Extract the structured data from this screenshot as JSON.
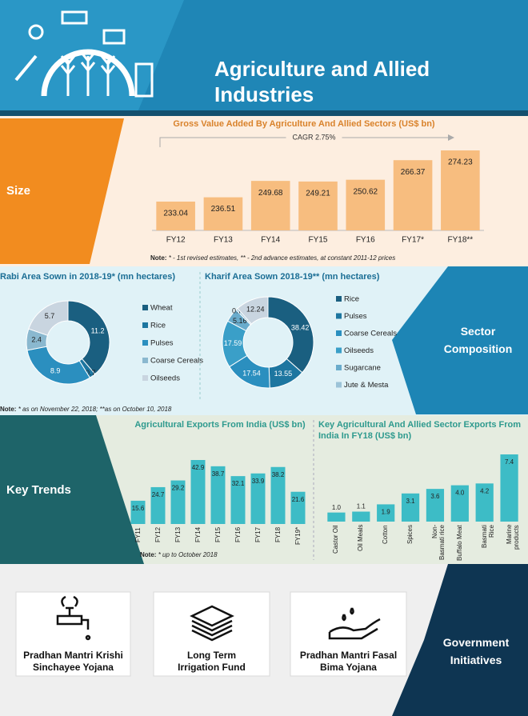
{
  "header": {
    "title": "Agriculture and Allied Industries"
  },
  "sections": [
    "Size",
    "Sector Composition",
    "Key Trends",
    "Government Initiatives"
  ],
  "initiatives": [
    "Pradhan Mantri Krishi Sinchayee Yojana",
    "Long Term Irrigation Fund",
    "Pradhan Mantri Fasal Bima Yojana"
  ],
  "chart_data": [
    {
      "type": "bar",
      "title": "Gross Value Added By Agriculture And Allied Sectors (US$ bn)",
      "annotation": "CAGR 2.75%",
      "categories": [
        "FY12",
        "FY13",
        "FY14",
        "FY15",
        "FY16",
        "FY17*",
        "FY18**"
      ],
      "values": [
        233.04,
        236.51,
        249.68,
        249.21,
        250.62,
        266.37,
        274.23
      ],
      "color": "#f7bd7f",
      "note": {
        "label": "Note:",
        "text": "* - 1st revised estimates, ** - 2nd advance estimates, at constant 2011-12 prices"
      }
    },
    {
      "type": "donut",
      "title": "Rabi Area Sown in 2018-19* (mn hectares)",
      "categories": [
        "Wheat",
        "Rice",
        "Pulses",
        "Coarse Cereals",
        "Oilseeds"
      ],
      "values": [
        11.2,
        0.7,
        8.9,
        2.4,
        5.7
      ],
      "colors": [
        "#1a5f80",
        "#1d76a0",
        "#2b8fbf",
        "#8ab8cf",
        "#c9d5e0"
      ],
      "note": {
        "label": "Note:",
        "text": "* as on November 22, 2018; **as on October 10, 2018"
      }
    },
    {
      "type": "donut",
      "title": "Kharif Area Sown 2018-19** (mn hectares)",
      "categories": [
        "Rice",
        "Pulses",
        "Coarse Cereals",
        "Oilseeds",
        "Sugarcane",
        "Jute & Mesta",
        null
      ],
      "values": [
        38.42,
        13.55,
        17.54,
        17.59,
        5.16,
        0.74,
        12.24
      ],
      "colors": [
        "#1a5f80",
        "#1d76a0",
        "#2b8fbf",
        "#3a9fc8",
        "#6aaccc",
        "#9cc3d8",
        "#c9d5e0"
      ]
    },
    {
      "type": "bar",
      "title": "Agricultural Exports From India (US$ bn)",
      "categories": [
        "FY11",
        "FY12",
        "FY13",
        "FY14",
        "FY15",
        "FY16",
        "FY17",
        "FY18",
        "FY19*"
      ],
      "values": [
        15.6,
        24.7,
        29.2,
        42.9,
        38.7,
        32.1,
        33.9,
        38.2,
        21.6
      ],
      "color": "#3dbcc6",
      "note": {
        "label": "Note:",
        "text": "* up to October 2018"
      }
    },
    {
      "type": "bar",
      "title": "Key Agricultural And Allied Sector Exports From India In FY18 (US$ bn)",
      "categories": [
        "Castor Oil",
        "Oil Meals",
        "Cotton",
        "Spices",
        "Non-Basmati rice",
        "Buffalo Meat",
        "Basmati Rice",
        "Marine products"
      ],
      "values": [
        1.0,
        1.1,
        1.9,
        3.1,
        3.6,
        4.0,
        4.2,
        7.4
      ],
      "value_labels": [
        "1.0",
        "1.1",
        "1.9",
        "3.1",
        "3.6",
        "4.0",
        "4.2",
        "7.4"
      ],
      "color": "#3dbcc6"
    }
  ]
}
